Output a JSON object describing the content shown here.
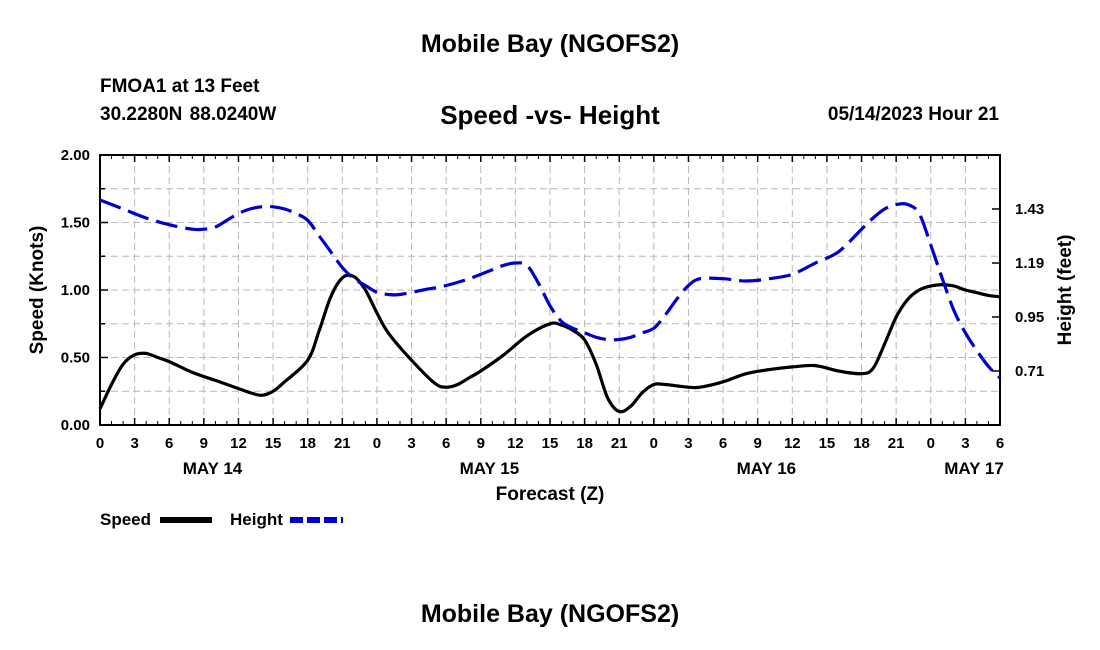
{
  "header": {
    "title": "Mobile Bay (NGOFS2)",
    "station": "FMOA1 at 13 Feet",
    "location": "30.2280N  88.0240W",
    "subtitle": "Speed -vs- Height",
    "timestamp": "05/14/2023 Hour 21"
  },
  "footer": {
    "title": "Mobile Bay (NGOFS2)"
  },
  "legend": {
    "speed_label": "Speed",
    "height_label": "Height",
    "speed_color": "#000000",
    "height_color": "#0000cc"
  },
  "chart_data": {
    "type": "line",
    "title": "Speed -vs- Height",
    "xlabel": "Forecast (Z)",
    "ylabel": "Speed (Knots)",
    "y2label": "Height (feet)",
    "x_range_hours": [
      0,
      78
    ],
    "x_start": "05/14/2023 00Z",
    "x_tick_step_hours": 3,
    "x_tick_labels": [
      "0",
      "3",
      "6",
      "9",
      "12",
      "15",
      "18",
      "21",
      "0",
      "3",
      "6",
      "9",
      "12",
      "15",
      "18",
      "21",
      "0",
      "3",
      "6",
      "9",
      "12",
      "15",
      "18",
      "21",
      "0",
      "3",
      "6"
    ],
    "day_labels": [
      {
        "label": "MAY 14",
        "hour": 9.75
      },
      {
        "label": "MAY 15",
        "hour": 33.75
      },
      {
        "label": "MAY 16",
        "hour": 57.75
      },
      {
        "label": "MAY 17",
        "hour": 75.75
      }
    ],
    "ylim": [
      0,
      2.0
    ],
    "y_ticks": [
      "0.00",
      "0.50",
      "1.00",
      "1.50",
      "2.00"
    ],
    "y_tick_values": [
      0,
      0.5,
      1.0,
      1.5,
      2.0
    ],
    "y2lim": [
      0.47,
      1.67
    ],
    "y2_ticks": [
      "0.71",
      "0.95",
      "1.19",
      "1.43"
    ],
    "y2_tick_values": [
      0.71,
      0.95,
      1.19,
      1.43
    ],
    "grid": true,
    "legend_position": "bottom-left",
    "series": [
      {
        "name": "Speed",
        "axis": "left",
        "units": "Knots",
        "style": "solid",
        "color": "#000000",
        "x": [
          0,
          1,
          2,
          3,
          4,
          5,
          6,
          8,
          10,
          12,
          13,
          14,
          15,
          16,
          18,
          19,
          20,
          21,
          22,
          23,
          24,
          25,
          27,
          29,
          30,
          31,
          32,
          33,
          35,
          37,
          39,
          40,
          41,
          42,
          43,
          44,
          45,
          46,
          47,
          48,
          49,
          50,
          51,
          52,
          54,
          56,
          58,
          60,
          62,
          64,
          66,
          67,
          68,
          69,
          70,
          71,
          72,
          73,
          74,
          75,
          76,
          77,
          78
        ],
        "values": [
          0.12,
          0.3,
          0.45,
          0.52,
          0.53,
          0.5,
          0.47,
          0.39,
          0.33,
          0.27,
          0.24,
          0.22,
          0.25,
          0.32,
          0.48,
          0.7,
          0.95,
          1.09,
          1.1,
          1.0,
          0.83,
          0.68,
          0.48,
          0.31,
          0.28,
          0.3,
          0.35,
          0.4,
          0.52,
          0.66,
          0.75,
          0.74,
          0.7,
          0.63,
          0.45,
          0.2,
          0.1,
          0.14,
          0.24,
          0.3,
          0.3,
          0.29,
          0.28,
          0.28,
          0.32,
          0.38,
          0.41,
          0.43,
          0.44,
          0.4,
          0.38,
          0.42,
          0.6,
          0.8,
          0.93,
          1.0,
          1.03,
          1.04,
          1.03,
          1.0,
          0.98,
          0.96,
          0.95
        ]
      },
      {
        "name": "Height",
        "axis": "right",
        "units": "feet",
        "style": "dashed",
        "color": "#0000cc",
        "x": [
          0,
          2,
          4,
          6,
          8,
          9,
          10,
          11,
          12,
          13,
          14,
          15,
          16,
          17,
          18,
          19,
          20,
          21,
          22,
          23,
          24,
          25,
          26,
          28,
          30,
          32,
          34,
          35,
          36,
          37,
          38,
          39,
          40,
          41,
          42,
          43,
          44,
          45,
          46,
          47,
          48,
          49,
          50,
          51,
          52,
          54,
          56,
          58,
          60,
          62,
          64,
          66,
          67,
          68,
          69,
          70,
          71,
          72,
          73,
          74,
          75,
          76,
          77,
          78
        ],
        "values": [
          1.47,
          1.43,
          1.39,
          1.36,
          1.34,
          1.34,
          1.35,
          1.38,
          1.41,
          1.43,
          1.44,
          1.44,
          1.43,
          1.41,
          1.38,
          1.31,
          1.24,
          1.17,
          1.12,
          1.09,
          1.06,
          1.05,
          1.05,
          1.07,
          1.09,
          1.12,
          1.16,
          1.18,
          1.19,
          1.18,
          1.1,
          1.0,
          0.93,
          0.9,
          0.88,
          0.86,
          0.85,
          0.85,
          0.86,
          0.88,
          0.9,
          0.96,
          1.03,
          1.09,
          1.12,
          1.12,
          1.11,
          1.12,
          1.14,
          1.19,
          1.24,
          1.34,
          1.39,
          1.43,
          1.45,
          1.45,
          1.41,
          1.27,
          1.12,
          0.98,
          0.88,
          0.8,
          0.73,
          0.68
        ]
      }
    ]
  }
}
